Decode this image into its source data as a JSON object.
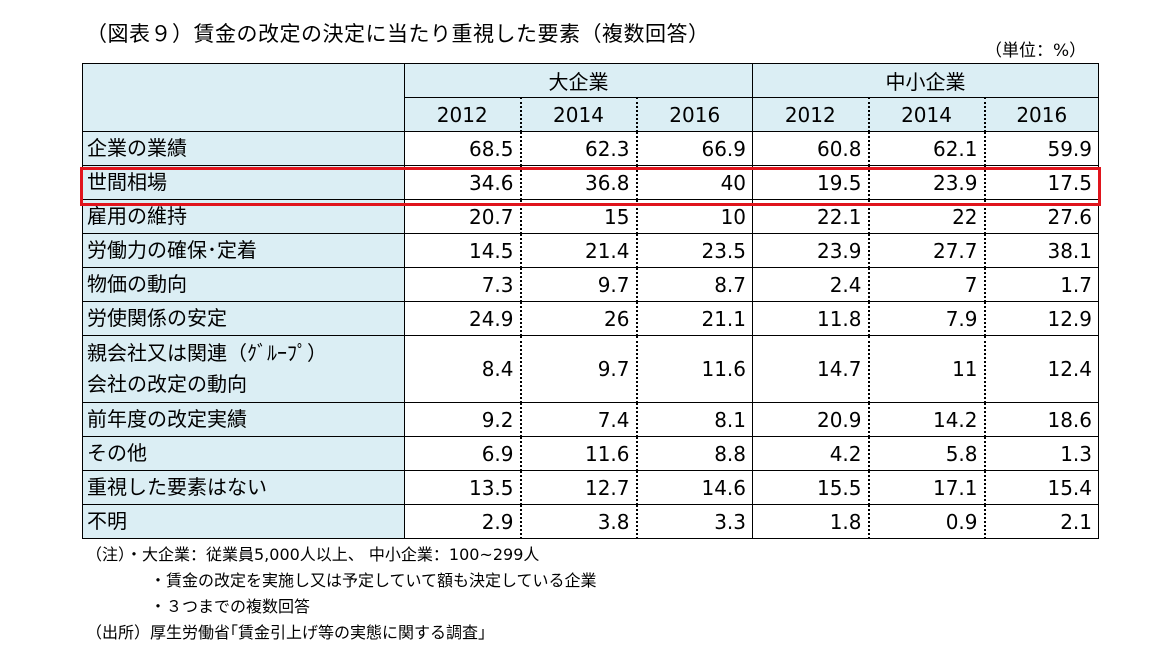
{
  "title": "（図表９）賃金の改定の決定に当たり重視した要素（複数回答）",
  "unit": "（単位：%）",
  "groups": [
    "大企業",
    "中小企業"
  ],
  "years": [
    "2012",
    "2014",
    "2016",
    "2012",
    "2014",
    "2016"
  ],
  "rows": [
    {
      "name": "企業の業績",
      "v": [
        "68.5",
        "62.3",
        "66.9",
        "60.8",
        "62.1",
        "59.9"
      ]
    },
    {
      "name": "世間相場",
      "v": [
        "34.6",
        "36.8",
        "40",
        "19.5",
        "23.9",
        "17.5"
      ]
    },
    {
      "name": "雇用の維持",
      "v": [
        "20.7",
        "15",
        "10",
        "22.1",
        "22",
        "27.6"
      ]
    },
    {
      "name": "労働力の確保･定着",
      "v": [
        "14.5",
        "21.4",
        "23.5",
        "23.9",
        "27.7",
        "38.1"
      ]
    },
    {
      "name": "物価の動向",
      "v": [
        "7.3",
        "9.7",
        "8.7",
        "2.4",
        "7",
        "1.7"
      ]
    },
    {
      "name": "労使関係の安定",
      "v": [
        "24.9",
        "26",
        "21.1",
        "11.8",
        "7.9",
        "12.9"
      ]
    },
    {
      "name": "親会社又は関連（ｸﾞﾙｰﾌﾟ）",
      "name2": "会社の改定の動向",
      "v": [
        "8.4",
        "9.7",
        "11.6",
        "14.7",
        "11",
        "12.4"
      ]
    },
    {
      "name": "前年度の改定実績",
      "v": [
        "9.2",
        "7.4",
        "8.1",
        "20.9",
        "14.2",
        "18.6"
      ]
    },
    {
      "name": "その他",
      "v": [
        "6.9",
        "11.6",
        "8.8",
        "4.2",
        "5.8",
        "1.3"
      ]
    },
    {
      "name": "重視した要素はない",
      "v": [
        "13.5",
        "12.7",
        "14.6",
        "15.5",
        "17.1",
        "15.4"
      ]
    },
    {
      "name": "不明",
      "v": [
        "2.9",
        "3.8",
        "3.3",
        "1.8",
        "0.9",
        "2.1"
      ]
    }
  ],
  "notes": {
    "note1": "（注）・大企業：従業員5,000人以上、 中小企業：100~299人",
    "note2": "・賃金の改定を実施し又は予定していて額も決定している企業",
    "note3": "・３つまでの複数回答",
    "source": "（出所）厚生労働省｢賃金引上げ等の実態に関する調査｣"
  }
}
